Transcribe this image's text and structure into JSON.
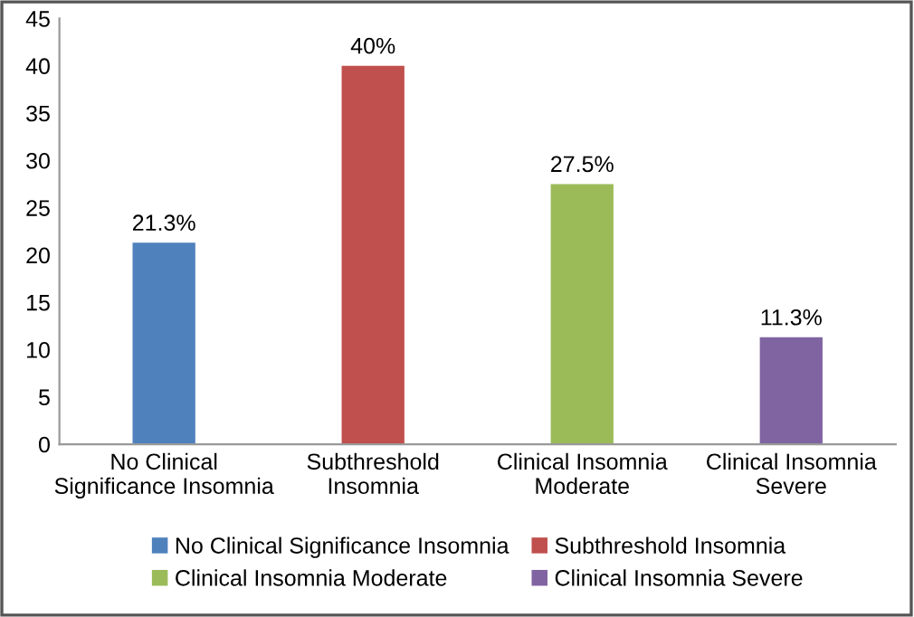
{
  "chart_data": {
    "type": "bar",
    "categories": [
      "No Clinical\nSignificance Insomnia",
      "Subthreshold\nInsomnia",
      "Clinical Insomnia\nModerate",
      "Clinical Insomnia\nSevere"
    ],
    "series": [
      {
        "name": "No Clinical Significance Insomnia",
        "color": "#4f81bd",
        "values": [
          21.3,
          null,
          null,
          null
        ],
        "value_labels": [
          "21.3%",
          null,
          null,
          null
        ]
      },
      {
        "name": "Subthreshold Insomnia",
        "color": "#c0504d",
        "values": [
          null,
          40,
          null,
          null
        ],
        "value_labels": [
          null,
          "40%",
          null,
          null
        ]
      },
      {
        "name": "Clinical Insomnia Moderate",
        "color": "#9bbb59",
        "values": [
          null,
          null,
          27.5,
          null
        ],
        "value_labels": [
          null,
          null,
          "27.5%",
          null
        ]
      },
      {
        "name": "Clinical Insomnia Severe",
        "color": "#8064a2",
        "values": [
          null,
          null,
          null,
          11.3
        ],
        "value_labels": [
          null,
          null,
          null,
          "11.3%"
        ]
      }
    ],
    "ylim": [
      0,
      45
    ],
    "yticks": [
      0,
      5,
      10,
      15,
      20,
      25,
      30,
      35,
      40,
      45
    ],
    "grid": false,
    "legend": "bottom"
  }
}
